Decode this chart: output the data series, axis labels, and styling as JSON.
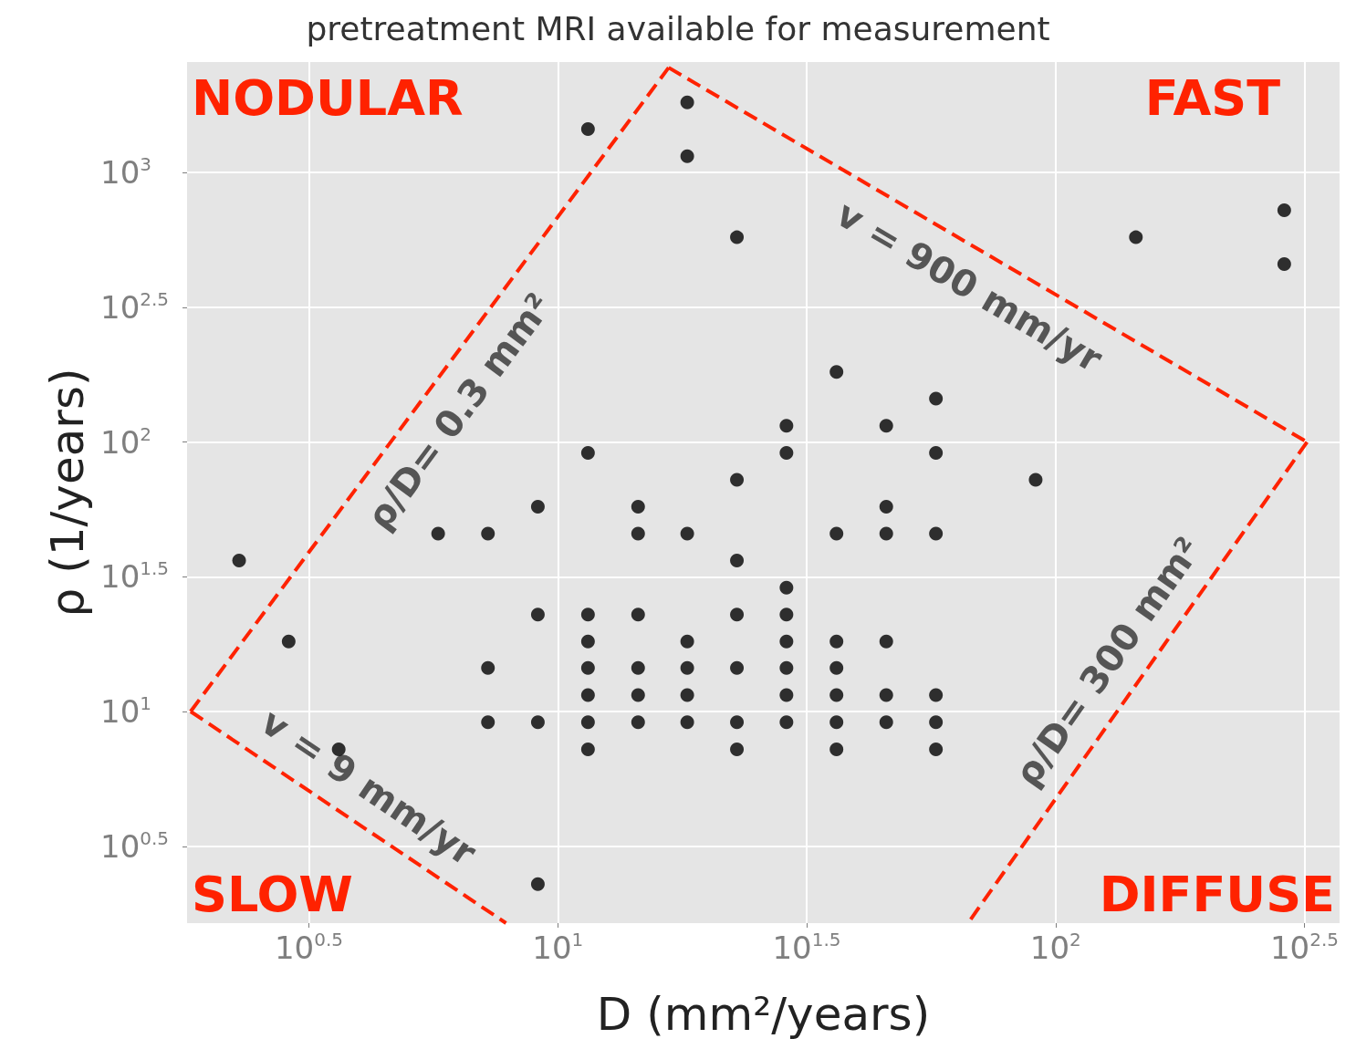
{
  "chart_data": {
    "type": "scatter",
    "title": "pretreatment MRI available for measurement",
    "xlabel": "D (mm²/years)",
    "ylabel": "ρ (1/years)",
    "log": "xy",
    "grid": true,
    "legend": false,
    "marker": "circle",
    "xlim": [
      1.8,
      372
    ],
    "ylim": [
      1.64,
      2570
    ],
    "xticks": [
      {
        "value": 3.162,
        "label": "10$^{0.5}$"
      },
      {
        "value": 10,
        "label": "10$^{1}$"
      },
      {
        "value": 31.62,
        "label": "10$^{1.5}$"
      },
      {
        "value": 100,
        "label": "10$^{2}$"
      },
      {
        "value": 316.2,
        "label": "10$^{2.5}$"
      }
    ],
    "yticks": [
      {
        "value": 3.162,
        "label": "10$^{0.5}$"
      },
      {
        "value": 10,
        "label": "10$^{1}$"
      },
      {
        "value": 31.62,
        "label": "10$^{1.5}$"
      },
      {
        "value": 100,
        "label": "10$^{2}$"
      },
      {
        "value": 316.2,
        "label": "10$^{2.5}$"
      },
      {
        "value": 1000,
        "label": "10$^{3}$"
      }
    ],
    "annotations": [
      "NODULAR",
      "FAST",
      "SLOW",
      "DIFFUSE"
    ],
    "series": [
      {
        "color": "#000000",
        "x": [
          2.29,
          2.88,
          3.63,
          5.75,
          7.24,
          7.24,
          7.24,
          9.12,
          9.12,
          9.12,
          9.12,
          11.5,
          11.5,
          11.5,
          11.5,
          11.5,
          11.5,
          11.5,
          11.5,
          14.5,
          14.5,
          14.5,
          14.5,
          14.5,
          14.5,
          18.2,
          18.2,
          18.2,
          18.2,
          18.2,
          18.2,
          18.2,
          22.9,
          22.9,
          22.9,
          22.9,
          22.9,
          22.9,
          22.9,
          28.8,
          28.8,
          28.8,
          28.8,
          28.8,
          28.8,
          28.8,
          28.8,
          36.3,
          36.3,
          36.3,
          36.3,
          36.3,
          36.3,
          36.3,
          45.7,
          45.7,
          45.7,
          45.7,
          45.7,
          45.7,
          57.5,
          57.5,
          57.5,
          57.5,
          57.5,
          57.5,
          91.2,
          145,
          288,
          288
        ],
        "values": [
          36.3,
          18.2,
          7.24,
          45.7,
          45.7,
          14.5,
          9.12,
          57.5,
          22.9,
          9.12,
          2.29,
          1450,
          91.2,
          22.9,
          18.2,
          14.5,
          11.5,
          9.12,
          7.24,
          57.5,
          45.7,
          22.9,
          14.5,
          11.5,
          9.12,
          1820,
          1150,
          45.7,
          18.2,
          14.5,
          11.5,
          9.12,
          575,
          72.4,
          36.3,
          22.9,
          14.5,
          9.12,
          7.24,
          115,
          91.2,
          28.8,
          22.9,
          18.2,
          14.5,
          11.5,
          9.12,
          182,
          45.7,
          18.2,
          14.5,
          11.5,
          9.12,
          7.24,
          115,
          57.5,
          45.7,
          18.2,
          11.5,
          9.12,
          145,
          91.2,
          45.7,
          11.5,
          9.12,
          7.24,
          72.4,
          575,
          724,
          457
        ]
      },
      {
        "type": "line",
        "name": "ρ/D= 0.3 mm²",
        "color": "#ff2200",
        "line_style": "dashed",
        "marker": "none",
        "x": [
          1.83,
          16.7
        ],
        "values": [
          10,
          2450
        ]
      },
      {
        "type": "line",
        "name": "v = 900 mm/yr",
        "color": "#ff2200",
        "line_style": "dashed",
        "marker": "none",
        "x": [
          16.7,
          320
        ],
        "values": [
          2450,
          100
        ]
      },
      {
        "type": "line",
        "name": "ρ/D= 300 mm²",
        "color": "#ff2200",
        "line_style": "dashed",
        "marker": "none",
        "x": [
          320,
          66.7
        ],
        "values": [
          100,
          1.64
        ]
      },
      {
        "type": "line",
        "name": "v = 9 mm/yr",
        "color": "#ff2200",
        "line_style": "dashed",
        "marker": "none",
        "x": [
          1.83,
          7.87
        ],
        "values": [
          10,
          1.64
        ]
      }
    ]
  }
}
